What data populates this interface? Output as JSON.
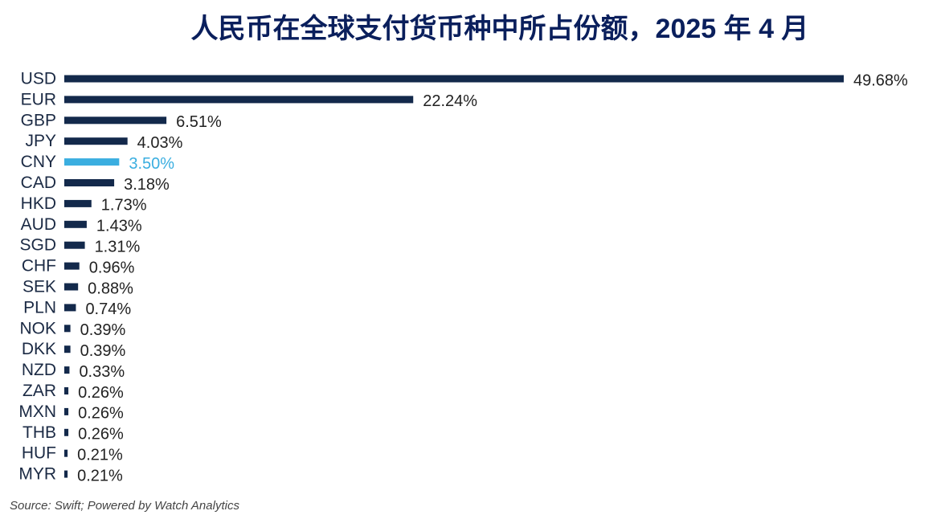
{
  "chart_data": {
    "type": "bar",
    "orientation": "horizontal",
    "title": "人民币在全球支付货币种中所占份额，2025 年 4 月",
    "source": "Source: Swift; Powered by Watch Analytics",
    "categories": [
      "USD",
      "EUR",
      "GBP",
      "JPY",
      "CNY",
      "CAD",
      "HKD",
      "AUD",
      "SGD",
      "CHF",
      "SEK",
      "PLN",
      "NOK",
      "DKK",
      "NZD",
      "ZAR",
      "MXN",
      "THB",
      "HUF",
      "MYR"
    ],
    "values": [
      49.68,
      22.24,
      6.51,
      4.03,
      3.5,
      3.18,
      1.73,
      1.43,
      1.31,
      0.96,
      0.88,
      0.74,
      0.39,
      0.39,
      0.33,
      0.26,
      0.26,
      0.26,
      0.21,
      0.21
    ],
    "value_labels": [
      "49.68%",
      "22.24%",
      "6.51%",
      "4.03%",
      "3.50%",
      "3.18%",
      "1.73%",
      "1.43%",
      "1.31%",
      "0.96%",
      "0.88%",
      "0.74%",
      "0.39%",
      "0.39%",
      "0.33%",
      "0.26%",
      "0.26%",
      "0.26%",
      "0.21%",
      "0.21%"
    ],
    "colors": [
      "#13294b",
      "#13294b",
      "#13294b",
      "#13294b",
      "#3aaee0",
      "#13294b",
      "#13294b",
      "#13294b",
      "#13294b",
      "#13294b",
      "#13294b",
      "#13294b",
      "#13294b",
      "#13294b",
      "#13294b",
      "#13294b",
      "#13294b",
      "#13294b",
      "#13294b",
      "#13294b"
    ]
  }
}
